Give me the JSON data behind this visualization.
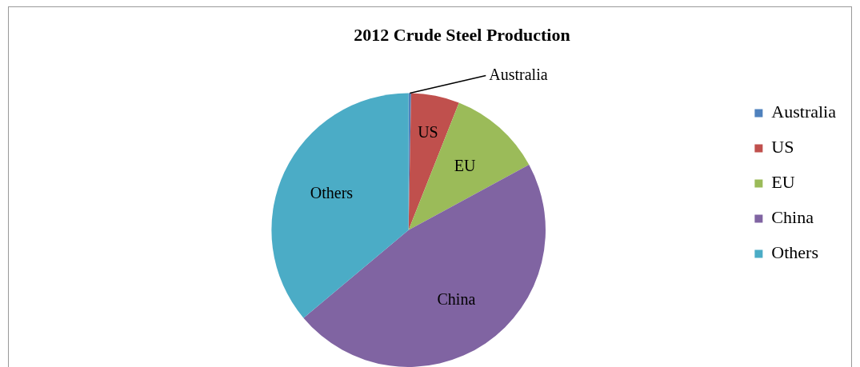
{
  "chart_data": {
    "type": "pie",
    "title": "2012 Crude Steel Production",
    "categories": [
      "Australia",
      "US",
      "EU",
      "China",
      "Others"
    ],
    "values": [
      0.3,
      5.7,
      11.1,
      46.8,
      36.1
    ],
    "colors": [
      "#4f81bd",
      "#c0504d",
      "#9bbb59",
      "#8064a2",
      "#4bacc6"
    ],
    "legend": "right"
  }
}
